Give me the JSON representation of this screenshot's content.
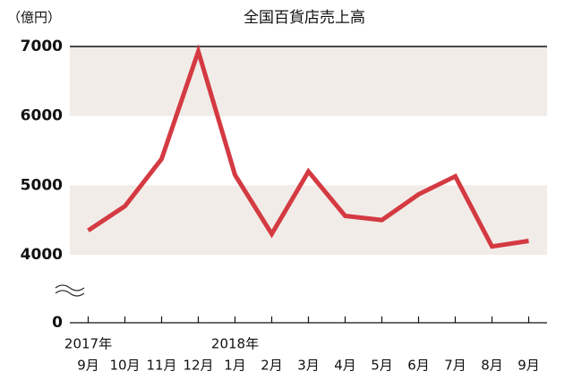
{
  "chart_data": {
    "type": "line",
    "title": "全国百貨店売上高",
    "y_unit": "（億円）",
    "categories": [
      "9月",
      "10月",
      "11月",
      "12月",
      "1月",
      "2月",
      "3月",
      "4月",
      "5月",
      "6月",
      "7月",
      "8月",
      "9月"
    ],
    "category_years": [
      "2017年",
      null,
      null,
      null,
      "2018年",
      null,
      null,
      null,
      null,
      null,
      null,
      null,
      null
    ],
    "series": [
      {
        "name": "全国百貨店売上高",
        "color": "#d43a42",
        "values": [
          4350,
          4700,
          5380,
          6930,
          5150,
          4300,
          5200,
          4560,
          4500,
          4870,
          5130,
          4120,
          4200
        ]
      }
    ],
    "ylim": [
      0,
      7000
    ],
    "yticks": [
      0,
      4000,
      5000,
      6000,
      7000
    ],
    "y_axis_break": true,
    "band_color": "#f1ece8"
  }
}
